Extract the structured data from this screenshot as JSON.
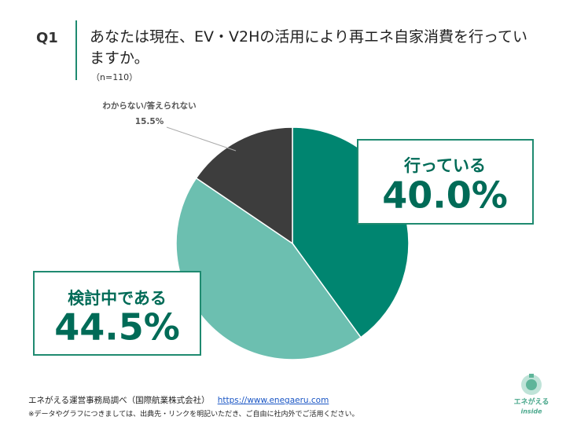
{
  "question_number": "Q1",
  "chart_data": {
    "type": "pie",
    "title": "あなたは現在、EV・V2Hの活用により再エネ自家消費を行っていますか。",
    "subtitle": "（n=110）",
    "categories": [
      "行っている",
      "検討中である",
      "わからない/答えられない"
    ],
    "values": [
      40.0,
      44.5,
      15.5
    ],
    "value_labels": [
      "40.0%",
      "44.5%",
      "15.5%"
    ],
    "colors": [
      "#008570",
      "#6cbfb0",
      "#3d3d3d"
    ]
  },
  "footer": {
    "source": "エネがえる運営事務局調べ（国際航業株式会社）",
    "url": "https://www.enegaeru.com",
    "note": "※データやグラフにつきましては、出典先・リンクを明記いただき、ご自由に社内外でご活用ください。"
  },
  "logo": {
    "name": "エネがえる",
    "tagline": "inside"
  }
}
